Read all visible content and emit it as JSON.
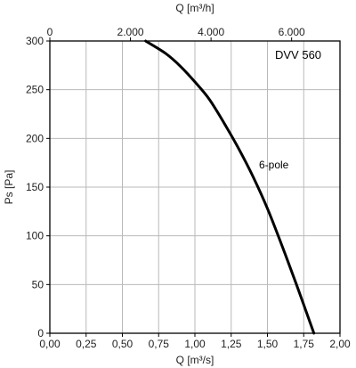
{
  "chart_data": {
    "type": "line",
    "model_label": "DVV 560",
    "x_bottom": {
      "label": "Q [m³/s]",
      "range": [
        0,
        2.0
      ],
      "ticks": [
        0,
        0.25,
        0.5,
        0.75,
        1.0,
        1.25,
        1.5,
        1.75,
        2.0
      ],
      "tick_labels": [
        "0,00",
        "0,25",
        "0,50",
        "0,75",
        "1,00",
        "1,25",
        "1,50",
        "1,75",
        "2,00"
      ]
    },
    "x_top": {
      "label": "Q [m³/h]",
      "range": [
        0,
        7200
      ],
      "ticks": [
        0,
        2000,
        4000,
        6000
      ],
      "tick_labels": [
        "0",
        "2.000",
        "4.000",
        "6.000"
      ]
    },
    "y": {
      "label": "Ps [Pa]",
      "range": [
        0,
        300
      ],
      "ticks": [
        0,
        50,
        100,
        150,
        200,
        250,
        300
      ],
      "tick_labels": [
        "0",
        "50",
        "100",
        "150",
        "200",
        "250",
        "300"
      ]
    },
    "grid": true,
    "series": [
      {
        "name": "6-pole",
        "color": "#000000",
        "x": [
          0.66,
          0.8,
          0.9,
          1.0,
          1.1,
          1.2,
          1.3,
          1.4,
          1.5,
          1.6,
          1.7,
          1.82
        ],
        "y": [
          300,
          287,
          274,
          258,
          240,
          216,
          190,
          161,
          128,
          90,
          50,
          0
        ]
      }
    ]
  }
}
